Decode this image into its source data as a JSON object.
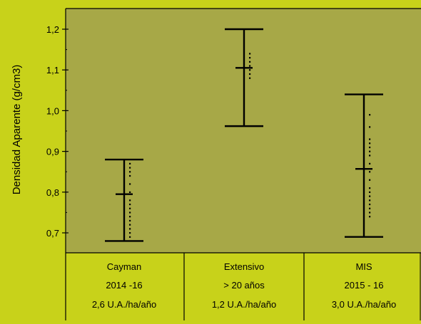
{
  "chart_data": {
    "type": "error_bar",
    "ylabel": "Densidad Aparente (g/cm3)",
    "xlabel": "",
    "ylim": [
      0.65,
      1.25
    ],
    "yticks": [
      "0,7",
      "0,8",
      "0,9",
      "1,0",
      "1,1",
      "1,2"
    ],
    "grid": false,
    "categories": [
      {
        "lines": [
          "Cayman",
          "2014 -16",
          "2,6 U.A./ha/año"
        ]
      },
      {
        "lines": [
          "Extensivo",
          "> 20 años",
          "1,2 U.A./ha/año"
        ]
      },
      {
        "lines": [
          "MIS",
          "2015 - 16",
          "3,0 U.A./ha/año"
        ]
      }
    ],
    "series": [
      {
        "values": [
          {
            "min": 0.68,
            "max": 0.88,
            "mean": 0.795,
            "points": [
              0.69,
              0.7,
              0.71,
              0.72,
              0.73,
              0.74,
              0.75,
              0.76,
              0.77,
              0.78,
              0.8,
              0.82,
              0.84,
              0.85,
              0.86,
              0.87
            ]
          },
          {
            "min": 0.962,
            "max": 1.2,
            "mean": 1.105,
            "points": [
              1.08,
              1.09,
              1.1,
              1.11,
              1.12,
              1.13,
              1.14
            ]
          },
          {
            "min": 0.69,
            "max": 1.04,
            "mean": 0.857,
            "points": [
              0.74,
              0.75,
              0.76,
              0.77,
              0.78,
              0.79,
              0.8,
              0.81,
              0.83,
              0.85,
              0.87,
              0.89,
              0.9,
              0.91,
              0.92,
              0.93,
              0.96,
              0.99
            ]
          }
        ]
      }
    ]
  },
  "colors": {
    "background": "#c8d21a",
    "plot_area": "#a7a847",
    "ink": "#000000"
  }
}
